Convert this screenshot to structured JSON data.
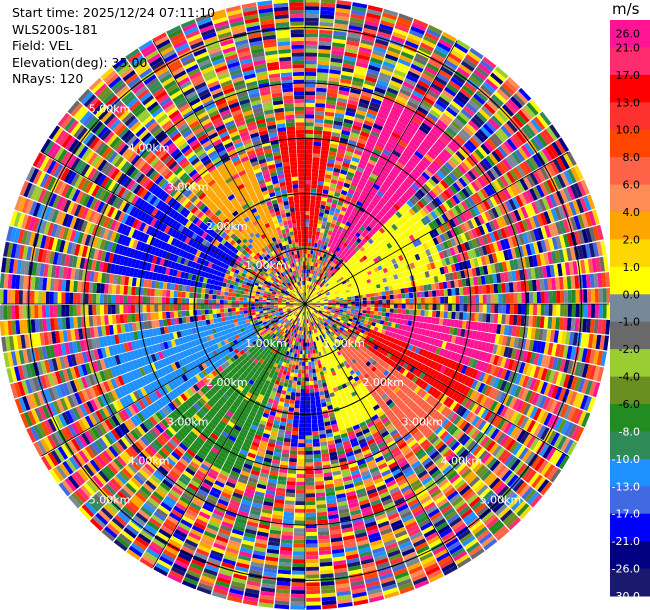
{
  "info": {
    "start_time": "Start time: 2025/12/24 07:11:10",
    "station": "WLS200s-181",
    "field": "Field: VEL",
    "elevation": "Elevation(deg): 35.00",
    "nrays": "NRays: 120"
  },
  "chart_data": {
    "type": "heatmap",
    "projection": "polar-ppi",
    "field": "VEL",
    "nrays": 120,
    "elevation_deg": 35.0,
    "range_ring_labels": [
      "1.00km",
      "2.00km",
      "3.00km",
      "4.00km",
      "5.00km"
    ],
    "range_rings_km": [
      1,
      2,
      3,
      4,
      5
    ],
    "max_range_km": 5.5,
    "grid": true,
    "colorbar": {
      "unit": "m/s",
      "ticks": [
        "26.0",
        "21.0",
        "17.0",
        "13.0",
        "10.0",
        "8.0",
        "6.0",
        "4.0",
        "2.0",
        "1.0",
        "0.0",
        "-1.0",
        "-2.0",
        "-4.0",
        "-6.0",
        "-8.0",
        "-10.0",
        "-13.0",
        "-17.0",
        "-21.0",
        "-26.0",
        "-30.0"
      ],
      "bins": [
        {
          "color": "#ff1493"
        },
        {
          "color": "#ff2d6f"
        },
        {
          "color": "#ff0000"
        },
        {
          "color": "#ff3030"
        },
        {
          "color": "#ff4500"
        },
        {
          "color": "#ff6347"
        },
        {
          "color": "#ff8c55"
        },
        {
          "color": "#ffa500"
        },
        {
          "color": "#ffd700"
        },
        {
          "color": "#ffff00"
        },
        {
          "color": "#778899"
        },
        {
          "color": "#696969"
        },
        {
          "color": "#9acd32"
        },
        {
          "color": "#6b8e23"
        },
        {
          "color": "#228b22"
        },
        {
          "color": "#2e8b57"
        },
        {
          "color": "#1e90ff"
        },
        {
          "color": "#4169e1"
        },
        {
          "color": "#0000ff"
        },
        {
          "color": "#000080"
        },
        {
          "color": "#191970"
        }
      ]
    },
    "sectors": [
      {
        "az_start": 350,
        "az_end": 10,
        "r_start_km": 1.0,
        "r_end_km": 3.2,
        "color": "#ff0000"
      },
      {
        "az_start": 20,
        "az_end": 45,
        "r_start_km": 1.0,
        "r_end_km": 4.0,
        "color": "#ff1493"
      },
      {
        "az_start": 45,
        "az_end": 80,
        "r_start_km": 0.3,
        "r_end_km": 2.6,
        "color": "#ffff00"
      },
      {
        "az_start": 95,
        "az_end": 110,
        "r_start_km": 1.5,
        "r_end_km": 3.5,
        "color": "#ff1493"
      },
      {
        "az_start": 110,
        "az_end": 125,
        "r_start_km": 1.2,
        "r_end_km": 3.4,
        "color": "#ff0000"
      },
      {
        "az_start": 125,
        "az_end": 145,
        "r_start_km": 1.0,
        "r_end_km": 3.3,
        "color": "#ff6347"
      },
      {
        "az_start": 145,
        "az_end": 165,
        "r_start_km": 0.5,
        "r_end_km": 2.4,
        "color": "#ffff00"
      },
      {
        "az_start": 170,
        "az_end": 185,
        "r_start_km": 1.6,
        "r_end_km": 2.6,
        "color": "#0000ff"
      },
      {
        "az_start": 200,
        "az_end": 230,
        "r_start_km": 0.8,
        "r_end_km": 3.4,
        "color": "#228b22"
      },
      {
        "az_start": 235,
        "az_end": 260,
        "r_start_km": 1.0,
        "r_end_km": 3.8,
        "color": "#1e90ff"
      },
      {
        "az_start": 280,
        "az_end": 310,
        "r_start_km": 1.5,
        "r_end_km": 3.6,
        "color": "#0000ff"
      },
      {
        "az_start": 315,
        "az_end": 340,
        "r_start_km": 1.2,
        "r_end_km": 3.0,
        "color": "#ffa500"
      }
    ]
  }
}
